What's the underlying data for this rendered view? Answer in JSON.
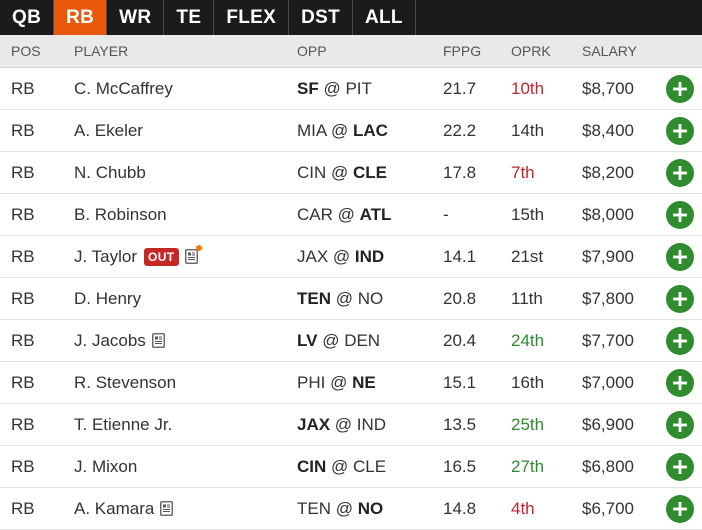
{
  "tabs": [
    {
      "label": "QB",
      "active": false
    },
    {
      "label": "RB",
      "active": true
    },
    {
      "label": "WR",
      "active": false
    },
    {
      "label": "TE",
      "active": false
    },
    {
      "label": "FLEX",
      "active": false
    },
    {
      "label": "DST",
      "active": false
    },
    {
      "label": "ALL",
      "active": false
    }
  ],
  "columns": {
    "pos": "POS",
    "player": "PLAYER",
    "opp": "OPP",
    "fppg": "FPPG",
    "oprk": "OPRK",
    "salary": "SALARY"
  },
  "colors": {
    "active_tab": "#e8590c",
    "oprk_bad": "#c0262c",
    "oprk_good": "#2e8b2e",
    "add_button": "#2e8b2e",
    "out_badge": "#c62828"
  },
  "rows": [
    {
      "pos": "RB",
      "player": "C. McCaffrey",
      "status": "",
      "news": false,
      "news_alert": false,
      "away": "SF",
      "home": "PIT",
      "bold": "away",
      "fppg": "21.7",
      "oprk": "10th",
      "oprk_tone": "red",
      "salary": "$8,700"
    },
    {
      "pos": "RB",
      "player": "A. Ekeler",
      "status": "",
      "news": false,
      "news_alert": false,
      "away": "MIA",
      "home": "LAC",
      "bold": "home",
      "fppg": "22.2",
      "oprk": "14th",
      "oprk_tone": "gray",
      "salary": "$8,400"
    },
    {
      "pos": "RB",
      "player": "N. Chubb",
      "status": "",
      "news": false,
      "news_alert": false,
      "away": "CIN",
      "home": "CLE",
      "bold": "home",
      "fppg": "17.8",
      "oprk": "7th",
      "oprk_tone": "red",
      "salary": "$8,200"
    },
    {
      "pos": "RB",
      "player": "B. Robinson",
      "status": "",
      "news": false,
      "news_alert": false,
      "away": "CAR",
      "home": "ATL",
      "bold": "home",
      "fppg": "-",
      "oprk": "15th",
      "oprk_tone": "gray",
      "salary": "$8,000"
    },
    {
      "pos": "RB",
      "player": "J. Taylor",
      "status": "OUT",
      "news": true,
      "news_alert": true,
      "away": "JAX",
      "home": "IND",
      "bold": "home",
      "fppg": "14.1",
      "oprk": "21st",
      "oprk_tone": "gray",
      "salary": "$7,900"
    },
    {
      "pos": "RB",
      "player": "D. Henry",
      "status": "",
      "news": false,
      "news_alert": false,
      "away": "TEN",
      "home": "NO",
      "bold": "away",
      "fppg": "20.8",
      "oprk": "11th",
      "oprk_tone": "gray",
      "salary": "$7,800"
    },
    {
      "pos": "RB",
      "player": "J. Jacobs",
      "status": "",
      "news": true,
      "news_alert": false,
      "away": "LV",
      "home": "DEN",
      "bold": "away",
      "fppg": "20.4",
      "oprk": "24th",
      "oprk_tone": "green",
      "salary": "$7,700"
    },
    {
      "pos": "RB",
      "player": "R. Stevenson",
      "status": "",
      "news": false,
      "news_alert": false,
      "away": "PHI",
      "home": "NE",
      "bold": "home",
      "fppg": "15.1",
      "oprk": "16th",
      "oprk_tone": "gray",
      "salary": "$7,000"
    },
    {
      "pos": "RB",
      "player": "T. Etienne Jr.",
      "status": "",
      "news": false,
      "news_alert": false,
      "away": "JAX",
      "home": "IND",
      "bold": "away",
      "fppg": "13.5",
      "oprk": "25th",
      "oprk_tone": "green",
      "salary": "$6,900"
    },
    {
      "pos": "RB",
      "player": "J. Mixon",
      "status": "",
      "news": false,
      "news_alert": false,
      "away": "CIN",
      "home": "CLE",
      "bold": "away",
      "fppg": "16.5",
      "oprk": "27th",
      "oprk_tone": "green",
      "salary": "$6,800"
    },
    {
      "pos": "RB",
      "player": "A. Kamara",
      "status": "",
      "news": true,
      "news_alert": false,
      "away": "TEN",
      "home": "NO",
      "bold": "home",
      "fppg": "14.8",
      "oprk": "4th",
      "oprk_tone": "red",
      "salary": "$6,700"
    }
  ]
}
